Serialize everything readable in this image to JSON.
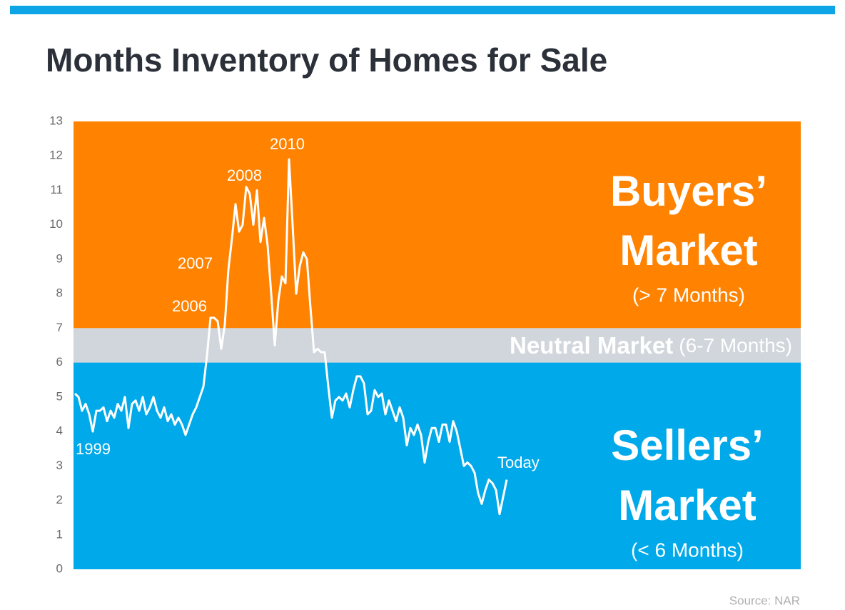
{
  "chart_data": {
    "type": "line",
    "title": "Months Inventory of Homes for Sale",
    "ylim": [
      0,
      13
    ],
    "yticks": [
      0,
      1,
      2,
      3,
      4,
      5,
      6,
      7,
      8,
      9,
      10,
      11,
      12,
      13
    ],
    "color": "#ffffff",
    "values": [
      5.1,
      5.0,
      4.6,
      4.8,
      4.5,
      4.0,
      4.6,
      4.6,
      4.7,
      4.3,
      4.6,
      4.4,
      4.8,
      4.6,
      5.0,
      4.1,
      4.8,
      4.9,
      4.6,
      5.0,
      4.5,
      4.7,
      5.0,
      4.6,
      4.4,
      4.7,
      4.3,
      4.5,
      4.2,
      4.4,
      4.2,
      3.9,
      4.2,
      4.5,
      4.7,
      5.0,
      5.3,
      6.2,
      7.3,
      7.3,
      7.2,
      6.4,
      7.1,
      8.7,
      9.6,
      10.6,
      9.8,
      10.0,
      11.1,
      10.9,
      10.0,
      11.0,
      9.5,
      10.2,
      9.4,
      8.0,
      6.5,
      7.8,
      8.5,
      8.3,
      11.9,
      10.0,
      8.0,
      8.8,
      9.2,
      9.0,
      7.6,
      6.3,
      6.4,
      6.3,
      6.3,
      5.3,
      4.4,
      4.9,
      5.0,
      4.9,
      5.1,
      4.7,
      5.2,
      5.6,
      5.6,
      5.4,
      4.5,
      4.6,
      5.2,
      5.0,
      5.1,
      4.5,
      4.9,
      4.6,
      4.3,
      4.7,
      4.4,
      3.6,
      4.1,
      3.9,
      4.2,
      3.9,
      3.1,
      3.7,
      4.1,
      4.1,
      3.7,
      4.2,
      4.2,
      3.7,
      4.3,
      4.0,
      3.5,
      3.0,
      3.1,
      3.0,
      2.8,
      2.2,
      1.9,
      2.3,
      2.6,
      2.5,
      2.3,
      1.6,
      2.1,
      2.6
    ],
    "bands": [
      {
        "range": [
          7,
          13
        ],
        "color": "#ff8200",
        "label": [
          "Buyers’",
          "Market"
        ],
        "note": "(> 7 Months)"
      },
      {
        "range": [
          6,
          7
        ],
        "color": "#d0d6db",
        "label": [
          "Neutral Market"
        ],
        "note": "(6-7 Months)"
      },
      {
        "range": [
          0,
          6
        ],
        "color": "#00a9e9",
        "label": [
          "Sellers’",
          "Market"
        ],
        "note": "(< 6 Months)"
      }
    ],
    "annotations": [
      "1999",
      "2006",
      "2007",
      "2008",
      "2010",
      "Today"
    ],
    "source": "Source: NAR"
  }
}
